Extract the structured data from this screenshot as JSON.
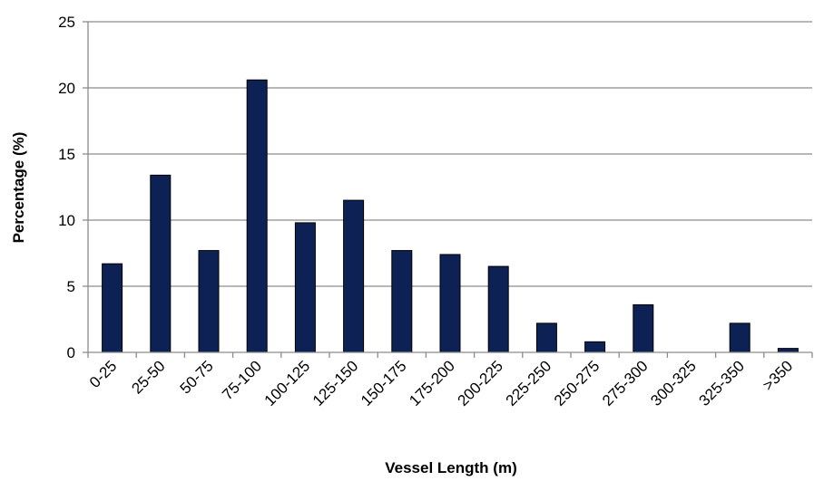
{
  "chart_data": {
    "type": "bar",
    "categories": [
      "0-25",
      "25-50",
      "50-75",
      "75-100",
      "100-125",
      "125-150",
      "150-175",
      "175-200",
      "200-225",
      "225-250",
      "250-275",
      "275-300",
      "300-325",
      "325-350",
      ">350"
    ],
    "values": [
      6.7,
      13.4,
      7.7,
      20.6,
      9.8,
      11.5,
      7.7,
      7.4,
      6.5,
      2.2,
      0.8,
      3.6,
      0,
      2.2,
      0.3
    ],
    "title": "",
    "xlabel": "Vessel Length (m)",
    "ylabel": "Percentage (%)",
    "ylim": [
      0,
      25
    ],
    "yticks": [
      0,
      5,
      10,
      15,
      20,
      25
    ],
    "grid": true,
    "legend": "none",
    "colors": {
      "bar_fill": "#0d2154",
      "bar_stroke": "#000000",
      "grid": "#8c8c8c",
      "axis": "#8c8c8c"
    }
  }
}
